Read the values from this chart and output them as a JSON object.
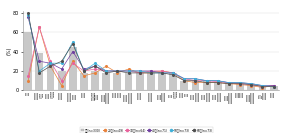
{
  "zentai": [
    60,
    38,
    28,
    20,
    45,
    18,
    20,
    18,
    18,
    18,
    18,
    18,
    18,
    18,
    10,
    10,
    10,
    9,
    8,
    7,
    6,
    4,
    5
  ],
  "age20": [
    10,
    65,
    25,
    5,
    30,
    15,
    18,
    25,
    18,
    22,
    18,
    18,
    20,
    18,
    10,
    8,
    8,
    8,
    7,
    6,
    5,
    3,
    5
  ],
  "age30": [
    15,
    65,
    30,
    10,
    28,
    20,
    22,
    20,
    20,
    20,
    18,
    20,
    20,
    18,
    12,
    10,
    10,
    9,
    8,
    7,
    6,
    4,
    5
  ],
  "age40": [
    75,
    30,
    28,
    22,
    40,
    22,
    25,
    20,
    20,
    20,
    20,
    20,
    18,
    18,
    12,
    12,
    10,
    10,
    8,
    8,
    7,
    5,
    5
  ],
  "age50": [
    78,
    20,
    28,
    28,
    50,
    20,
    28,
    20,
    20,
    20,
    20,
    18,
    18,
    18,
    12,
    12,
    10,
    10,
    8,
    8,
    7,
    5,
    4
  ],
  "age60": [
    80,
    18,
    25,
    30,
    48,
    20,
    25,
    18,
    20,
    18,
    18,
    18,
    18,
    16,
    10,
    10,
    8,
    8,
    7,
    7,
    6,
    4,
    4
  ],
  "colors": {
    "zentai": "#c8c8c8",
    "age20": "#e8823c",
    "age30": "#e8639c",
    "age40": "#7040a0",
    "age50": "#40b0d8",
    "age60": "#505050"
  },
  "xtick_labels": [
    "自髪",
    "ぱさつき\n/乾燥",
    "くせ毛\n/うねり",
    "髪の密度",
    "ボリューム\nがない",
    "抜け毛",
    "ハリ/コシ\nがない",
    "カラーが\n長持ちしない",
    "髪の毛\nが細い",
    "思い通り\nまとまらない",
    "潤がない",
    "ツヤがない",
    "セット\n崩れやすい",
    "椒毛\n/切れ毛",
    "頭皮が\n痒い",
    "頭皮大\nボリューム",
    "頭皮が\n崩れやすい",
    "頭皮が\n荒れている",
    "頭皮が\n変わりにくい",
    "逆立ち\nやすい",
    "パーマが\nかかりにくい",
    "産後/\n腦の悩み",
    "その他"
  ],
  "legend_labels": [
    "全体(n=330)",
    "20代(n=49)",
    "3D代(n=64)",
    "40代(n=71)",
    "50代(n=73)",
    "60代(n=73)"
  ],
  "ylabel": "(%)",
  "ylim": [
    0,
    82
  ],
  "yticks": [
    0,
    20,
    40,
    60,
    80
  ]
}
